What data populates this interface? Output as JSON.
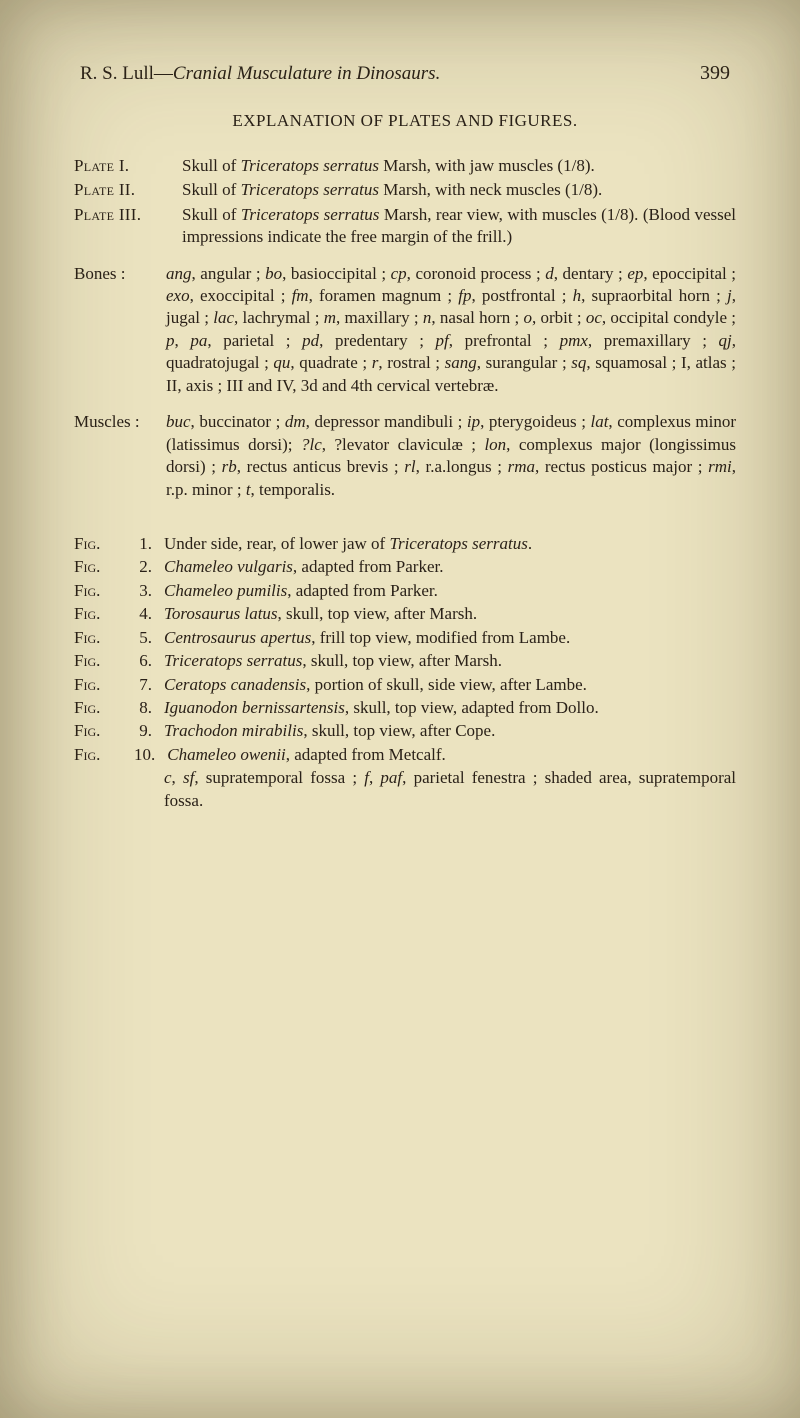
{
  "page": {
    "running_head_author": "R. S. Lull—",
    "running_head_title": "Cranial Musculature in Dinosaurs.",
    "page_number": "399",
    "section_title": "EXPLANATION OF PLATES AND FIGURES."
  },
  "plates": [
    {
      "label": "Plate I.",
      "text": "Skull of <i>Triceratops serratus</i> Marsh, with jaw muscles (1/8)."
    },
    {
      "label": "Plate II.",
      "text": "Skull of <i>Triceratops serratus</i> Marsh, with neck muscles (1/8)."
    },
    {
      "label": "Plate III.",
      "text": "Skull of <i>Triceratops serratus</i> Marsh, rear view, with muscles (1/8). (Blood vessel impressions indicate the free margin of the frill.)"
    }
  ],
  "bones": {
    "label": "Bones :",
    "text": "<i>ang</i>, angular ; <i>bo</i>, basioccipital ; <i>cp</i>, coronoid process ; <i>d</i>, dentary ; <i>ep</i>, epoccipital ; <i>exo</i>, exoccipital ; <i>fm</i>, foramen magnum ; <i>fp</i>, postfrontal ; <i>h</i>, supraorbital horn ; <i>j</i>, jugal ; <i>lac</i>, lachrymal ; <i>m</i>, maxillary ; <i>n</i>, nasal horn ; <i>o</i>, orbit ; <i>oc</i>, occipital condyle ; <i>p</i>, <i>pa</i>, parietal ; <i>pd</i>, predentary ; <i>pf</i>, prefrontal ; <i>pmx</i>, premaxillary ; <i>qj</i>, quadratojugal ; <i>qu</i>, quadrate ; <i>r</i>, rostral ; <i>sang</i>, surangular ; <i>sq</i>, squamosal ; I, atlas ; II, axis ; III and IV, 3d and 4th cervical vertebræ."
  },
  "muscles": {
    "label": "Muscles :",
    "text": "<i>buc</i>, buccinator ; <i>dm</i>, depressor mandibuli ; <i>ip</i>, pterygoideus ; <i>lat</i>, complexus minor (latissimus dorsi); <i>?lc</i>, ?levator claviculæ ; <i>lon</i>, complexus major (longissimus dorsi) ; <i>rb</i>, rectus anticus brevis ; <i>rl</i>, r.a.longus ; <i>rma</i>, rectus posticus major ; <i>rmi</i>, r.p. minor ; <i>t</i>, temporalis."
  },
  "figs": [
    {
      "label": "Fig.",
      "num": "1.",
      "text": "Under side, rear, of lower jaw of <i>Triceratops serratus</i>."
    },
    {
      "label": "Fig.",
      "num": "2.",
      "text": "<i>Chameleo vulgaris</i>, adapted from Parker."
    },
    {
      "label": "Fig.",
      "num": "3.",
      "text": "<i>Chameleo pumilis</i>, adapted from Parker."
    },
    {
      "label": "Fig.",
      "num": "4.",
      "text": "<i>Torosaurus latus</i>, skull, top view, after Marsh."
    },
    {
      "label": "Fig.",
      "num": "5.",
      "text": "<i>Centrosaurus apertus</i>, frill top view, modified from Lambe."
    },
    {
      "label": "Fig.",
      "num": "6.",
      "text": "<i>Triceratops serratus</i>, skull, top view, after Marsh."
    },
    {
      "label": "Fig.",
      "num": "7.",
      "text": "<i>Ceratops canadensis</i>, portion of skull, side view, after Lambe."
    },
    {
      "label": "Fig.",
      "num": "8.",
      "text": "<i>Iguanodon bernissartensis</i>, skull, top view, adapted from Dollo."
    },
    {
      "label": "Fig.",
      "num": "9.",
      "text": "<i>Trachodon mirabilis</i>, skull, top view, after Cope."
    },
    {
      "label": "Fig.",
      "num": "10.",
      "text": "<i>Chameleo owenii</i>, adapted from Metcalf."
    }
  ],
  "fig_continuation": "<i>c</i>, <i>sf</i>, supratemporal fossa ; <i>f</i>, <i>paf</i>, parietal fenestra ; shaded area, supratemporal fossa."
}
